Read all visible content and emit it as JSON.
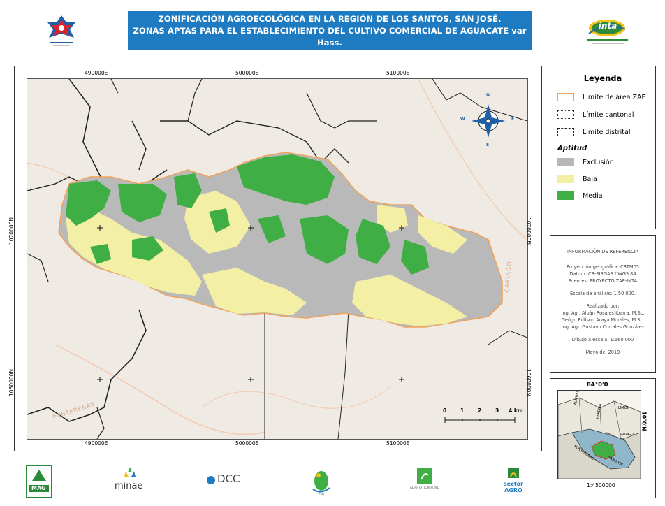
{
  "header": {
    "title_line1": "ZONIFICACIÓN AGROECOLÓGICA EN LA REGIÓN DE LOS SANTOS, SAN JOSÉ.",
    "title_line2": "ZONAS APTAS PARA EL ESTABLECIMIENTO DEL CULTIVO COMERCIAL DE AGUACATE var Hass.",
    "title_bg": "#1f7bc1",
    "left_logo": "star-emblem-icon",
    "right_logo": "inta",
    "right_logo_text": "inta"
  },
  "map": {
    "coords_top": [
      "490000E",
      "500000E",
      "510000E"
    ],
    "coords_bottom": [
      "490000E",
      "500000E",
      "510000E"
    ],
    "coords_left": [
      "1070000N",
      "1060000N"
    ],
    "coords_right": [
      "1070000N",
      "1060000N"
    ],
    "place_labels": [
      "CARTAGO",
      "PUNTARENAS"
    ],
    "compass": {
      "n": "N",
      "s": "S",
      "e": "E",
      "w": "W"
    },
    "scalebar": {
      "ticks": [
        "0",
        "1",
        "2",
        "3",
        "4 km"
      ]
    },
    "colors": {
      "exclusion": "#b7b7b7",
      "baja": "#f3f0a6",
      "media": "#3fae45",
      "zae_outline": "#f0a25a",
      "background": "#efeae3"
    }
  },
  "legend": {
    "title": "Leyenda",
    "items": [
      {
        "label": "Límite de área ZAE"
      },
      {
        "label": "Límite cantonal"
      },
      {
        "label": "Límite distrital"
      }
    ],
    "aptitud_title": "Aptitud",
    "aptitud": [
      {
        "label": "Exclusión",
        "color": "#b7b7b7"
      },
      {
        "label": "Baja",
        "color": "#f3f0a6"
      },
      {
        "label": "Media",
        "color": "#3fae45"
      }
    ]
  },
  "reference": {
    "title": "INFORMACIÓN DE REFERENCIA",
    "proyeccion": "Proyección geográfica: CRTM05",
    "datum": "Datum: CR-SIRGAS / WGS 84",
    "fuentes": "Fuentes: PROYECTO ZAE-INTA",
    "escala_analisis": "Escala de análisis: 1:50 000.",
    "realizado": "Realizado por:",
    "autor1": "Ing. Agr. Albán Rosales Ibarra, M.Sc.",
    "autor2": "Geógr. Edilson Araya Morales, M.Sc.",
    "autor3": "Ing. Agr. Gustavo Corrales González",
    "dibujo": "Dibujo a escala: 1:160 000",
    "fecha": "Mayo del 2019"
  },
  "inset": {
    "top_label": "84°0'0",
    "right_label": "10°0'N",
    "bottom_label": "1:4500000",
    "provinces": [
      "ALAJUELA",
      "HEREDIA",
      "LIMON",
      "CARTAGO",
      "SAN JOSE",
      "PUNTARENAS"
    ]
  },
  "footer_logos": [
    {
      "name": "MAG"
    },
    {
      "name": "minae"
    },
    {
      "name": "DCC"
    },
    {
      "name": "frog"
    },
    {
      "name": "ADAPTATION FUND"
    },
    {
      "name": "sector AGRO"
    }
  ]
}
